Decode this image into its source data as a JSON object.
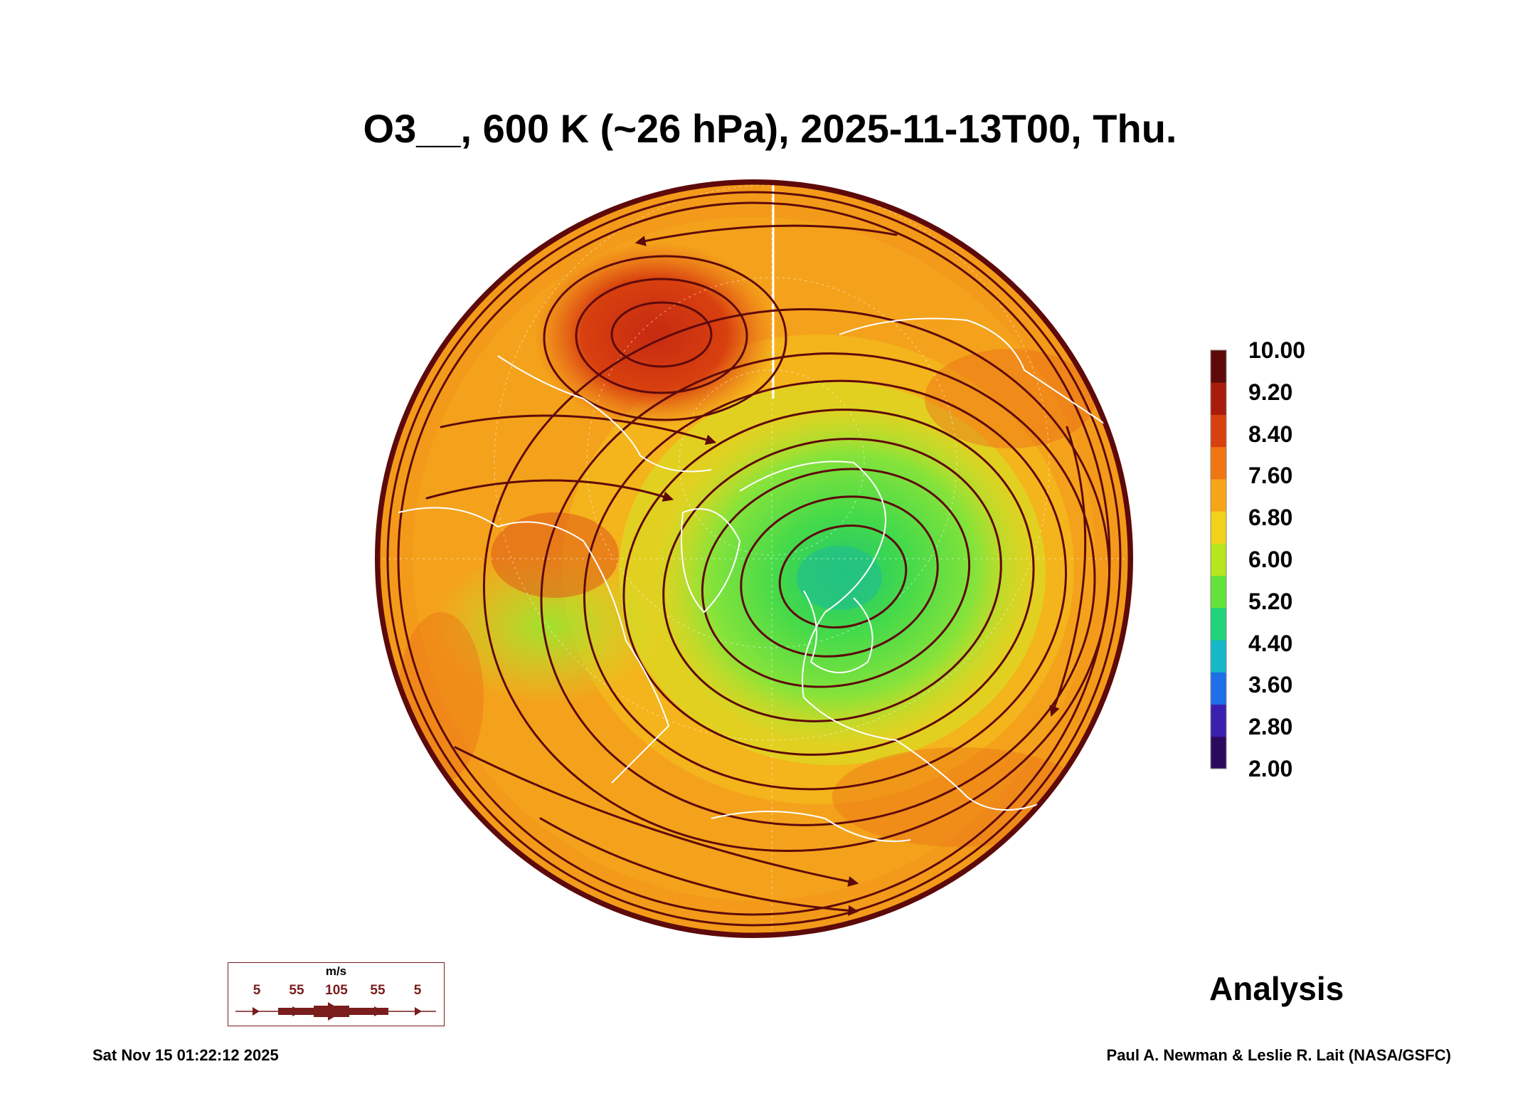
{
  "title": "O3__, 600 K (~26 hPa), 2025-11-13T00, Thu.",
  "colorbar": {
    "labels": [
      "10.00",
      "9.20",
      "8.40",
      "7.60",
      "6.80",
      "6.00",
      "5.20",
      "4.40",
      "3.60",
      "2.80",
      "2.00"
    ],
    "min": 2.0,
    "max": 10.0,
    "colors": [
      "#2a0a5e",
      "#3b1fb0",
      "#1e6fe8",
      "#14b8c8",
      "#21d37a",
      "#63e33a",
      "#b7e51e",
      "#f2d21a",
      "#f7a518",
      "#f07614",
      "#d8400f",
      "#a91c0c",
      "#5e0a0a"
    ]
  },
  "wind_legend": {
    "unit": "m/s",
    "values": [
      "5",
      "55",
      "105",
      "55",
      "5"
    ]
  },
  "label_analysis": "Analysis",
  "timestamp": "Sat Nov 15 01:22:12 2025",
  "credit": "Paul A. Newman & Leslie R. Lait (NASA/GSFC)"
}
